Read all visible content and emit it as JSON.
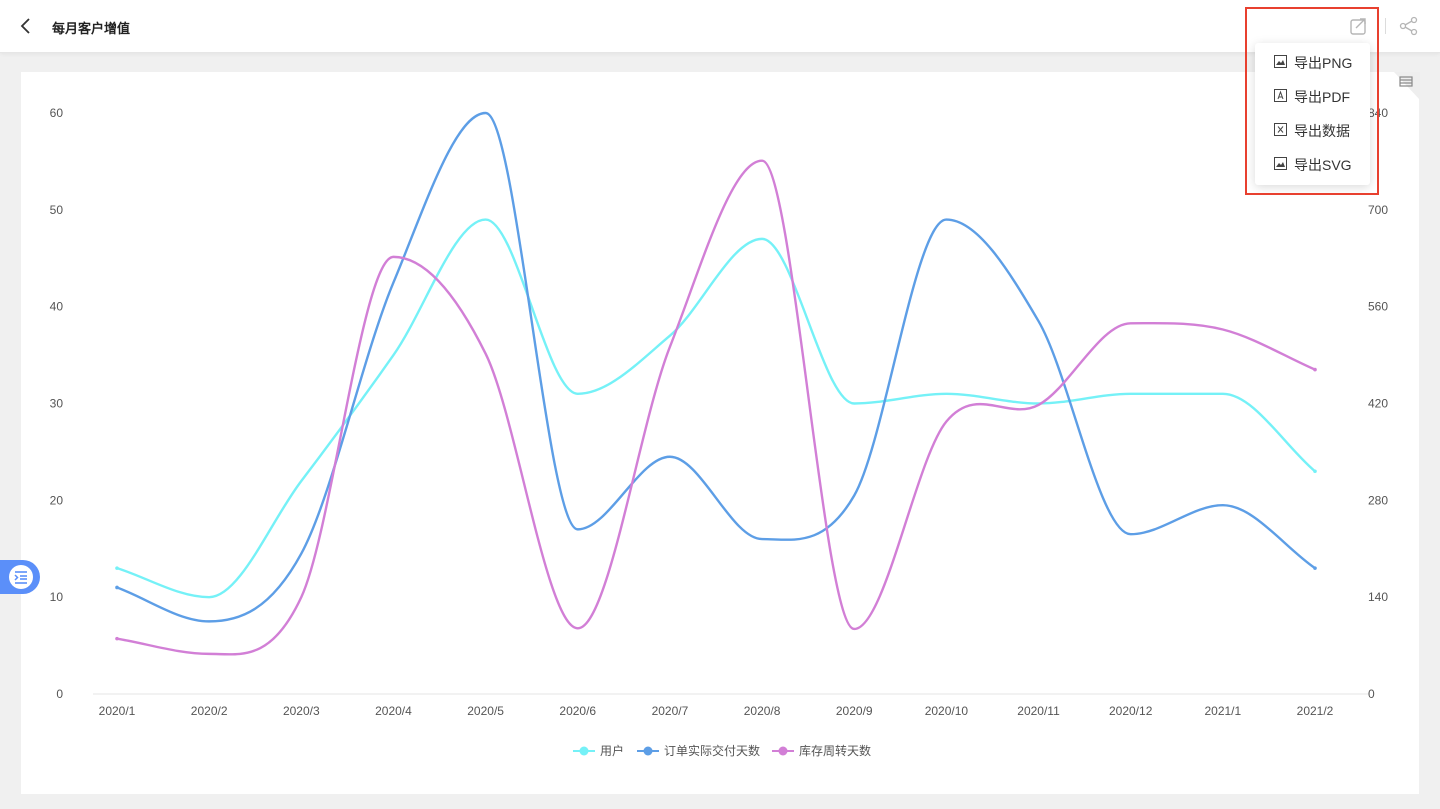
{
  "header": {
    "title": "每月客户增值"
  },
  "export_menu": {
    "items": [
      {
        "label": "导出PNG",
        "icon": "image-icon"
      },
      {
        "label": "导出PDF",
        "icon": "pdf-icon"
      },
      {
        "label": "导出数据",
        "icon": "excel-icon"
      },
      {
        "label": "导出SVG",
        "icon": "image-icon"
      }
    ]
  },
  "colors": {
    "highlight": "#e8402f",
    "side_toggle": "#5b8ff9"
  },
  "chart_data": {
    "type": "line",
    "smooth": true,
    "categories": [
      "2020/1",
      "2020/2",
      "2020/3",
      "2020/4",
      "2020/5",
      "2020/6",
      "2020/7",
      "2020/8",
      "2020/9",
      "2020/10",
      "2020/11",
      "2020/12",
      "2021/1",
      "2021/2"
    ],
    "y_left": {
      "min": 0,
      "max": 60,
      "ticks": [
        0,
        10,
        20,
        30,
        40,
        50,
        60
      ]
    },
    "y_right": {
      "min": 0,
      "max": 840,
      "ticks": [
        0,
        140,
        280,
        420,
        560,
        700,
        840
      ]
    },
    "grid": false,
    "legend_position": "bottom",
    "series": [
      {
        "name": "用户",
        "axis": "left",
        "color": "#75f1f7",
        "values": [
          13,
          10,
          22,
          35,
          49,
          31,
          37,
          47,
          30,
          31,
          30,
          31,
          31,
          23
        ]
      },
      {
        "name": "订单实际交付天数",
        "axis": "left",
        "color": "#5d9ee6",
        "values": [
          11,
          7.5,
          14.5,
          42.5,
          60,
          17,
          24.5,
          16,
          20.5,
          49,
          38.5,
          16.5,
          19.5,
          13
        ]
      },
      {
        "name": "库存周转天数",
        "axis": "right",
        "color": "#d27fd6",
        "values": [
          80,
          58,
          140,
          632,
          492,
          95,
          502,
          771,
          94,
          394,
          418,
          536,
          527,
          469
        ]
      }
    ]
  }
}
